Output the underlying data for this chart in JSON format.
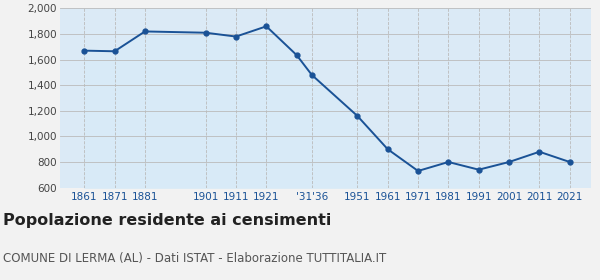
{
  "years": [
    1861,
    1871,
    1881,
    1901,
    1911,
    1921,
    1931,
    1936,
    1951,
    1961,
    1971,
    1981,
    1991,
    2001,
    2011,
    2021
  ],
  "population": [
    1670,
    1665,
    1820,
    1810,
    1780,
    1860,
    1635,
    1480,
    1160,
    900,
    730,
    800,
    740,
    800,
    880,
    800
  ],
  "line_color": "#1a5296",
  "fill_color": "#d8eaf7",
  "bg_fill_color": "#dbeaf6",
  "marker_size": 3.5,
  "linewidth": 1.4,
  "ylim": [
    600,
    2000
  ],
  "yticks": [
    600,
    800,
    1000,
    1200,
    1400,
    1600,
    1800,
    2000
  ],
  "xtick_positions": [
    1861,
    1871,
    1881,
    1901,
    1911,
    1921,
    1936,
    1951,
    1961,
    1971,
    1981,
    1991,
    2001,
    2011,
    2021
  ],
  "xtick_labels": [
    "1861",
    "1871",
    "1881",
    "1901",
    "1911",
    "1921",
    "'31'36",
    "1951",
    "1961",
    "1971",
    "1981",
    "1991",
    "2001",
    "2011",
    "2021"
  ],
  "xlim_left": 1853,
  "xlim_right": 2028,
  "title": "Popolazione residente ai censimenti",
  "subtitle": "COMUNE DI LERMA (AL) - Dati ISTAT - Elaborazione TUTTITALIA.IT",
  "title_fontsize": 11.5,
  "subtitle_fontsize": 8.5,
  "fig_bg": "#f2f2f2",
  "grid_color_x": "#bbbbbb",
  "grid_color_y": "#bbbbbb"
}
